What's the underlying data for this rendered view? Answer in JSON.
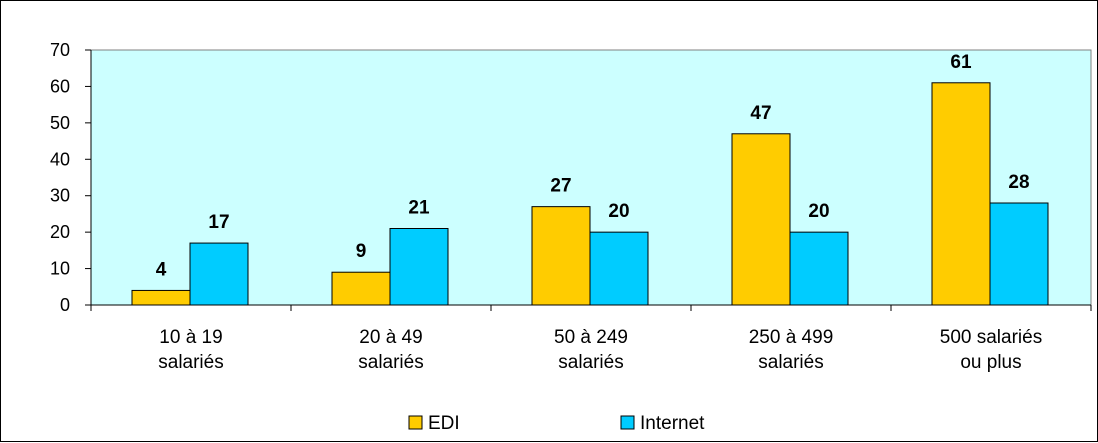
{
  "chart_data": {
    "type": "bar",
    "categories": [
      [
        "10 à 19",
        "salariés"
      ],
      [
        "20 à 49",
        "salariés"
      ],
      [
        "50 à 249",
        "salariés"
      ],
      [
        "250 à 499",
        "salariés"
      ],
      [
        "500 salariés",
        "ou plus"
      ]
    ],
    "series": [
      {
        "name": "EDI",
        "color": "#FFCC00",
        "values": [
          4,
          9,
          27,
          47,
          61
        ]
      },
      {
        "name": "Internet",
        "color": "#00CCFF",
        "values": [
          17,
          21,
          20,
          20,
          28
        ]
      }
    ],
    "yticks": [
      0,
      10,
      20,
      30,
      40,
      50,
      60,
      70
    ],
    "ylim": [
      0,
      70
    ],
    "plot_background": "#CCFFFF",
    "grid": false,
    "legend_position": "bottom-center"
  }
}
